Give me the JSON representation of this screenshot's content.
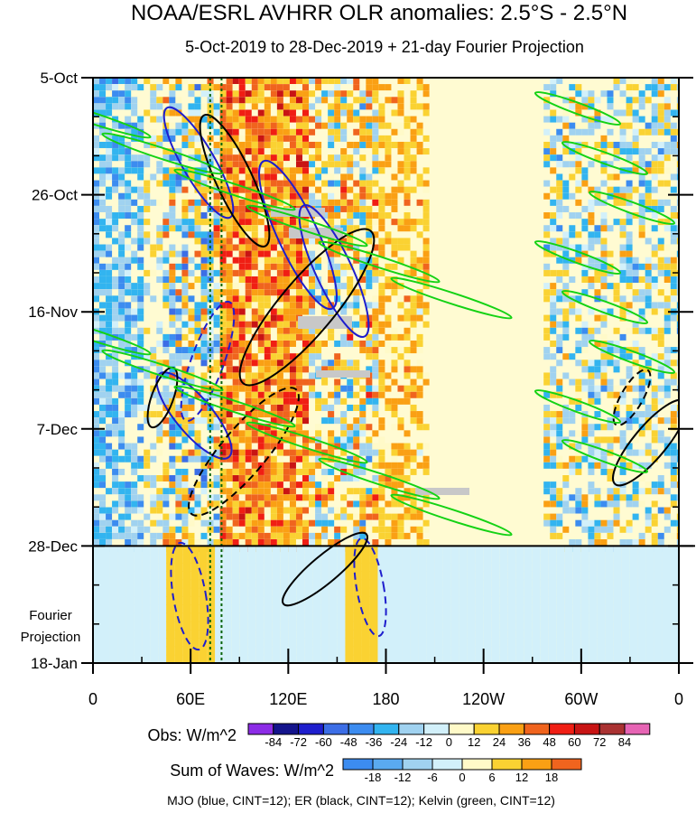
{
  "chart_data": {
    "type": "heatmap",
    "title": "NOAA/ESRL AVHRR OLR anomalies: 2.5°S - 2.5°N",
    "subtitle": "5-Oct-2019 to 28-Dec-2019 + 21-day Fourier Projection",
    "x_ticks": [
      "0",
      "60E",
      "120E",
      "180",
      "120W",
      "60W",
      "0"
    ],
    "x_tick_lons": [
      0,
      60,
      120,
      180,
      240,
      300,
      360
    ],
    "xlim": [
      0,
      360
    ],
    "y_ticks": [
      "5-Oct",
      "26-Oct",
      "16-Nov",
      "7-Dec",
      "28-Dec",
      "18-Jan"
    ],
    "y_tick_days": [
      0,
      21,
      42,
      63,
      84,
      105
    ],
    "ylim_days": [
      0,
      105
    ],
    "observation_end_day": 84,
    "projection_label": [
      "Fourier",
      "Projection"
    ],
    "reference_lines_lon": [
      72,
      79
    ],
    "obs_legend": {
      "label": "Obs: W/m^2",
      "ticks": [
        "-84",
        "-72",
        "-60",
        "-48",
        "-36",
        "-24",
        "-12",
        "0",
        "12",
        "24",
        "36",
        "48",
        "60",
        "72",
        "84"
      ],
      "colors": [
        "#8c2ce6",
        "#14148c",
        "#1e1ecd",
        "#3c6ee6",
        "#3c8cf0",
        "#32b4f0",
        "#a0d2f0",
        "#d2f0fa",
        "#fffac8",
        "#fad232",
        "#faa014",
        "#f0641e",
        "#f01e14",
        "#c81414",
        "#aa3232",
        "#e664b4"
      ]
    },
    "waves_legend": {
      "label": "Sum of Waves: W/m^2",
      "ticks": [
        "-18",
        "-12",
        "-6",
        "0",
        "6",
        "12",
        "18"
      ],
      "colors": [
        "#3c8cf0",
        "#5aaaf0",
        "#a0d2f0",
        "#d2f0fa",
        "#fffac8",
        "#fad232",
        "#faa014",
        "#f0641e"
      ]
    },
    "footer": "MJO (blue, CINT=12); ER (black, CINT=12); Kelvin (green, CINT=12)",
    "wave_colors": {
      "mjo": "#1e1ecd",
      "er": "#000000",
      "kelvin": "#14d214"
    }
  }
}
